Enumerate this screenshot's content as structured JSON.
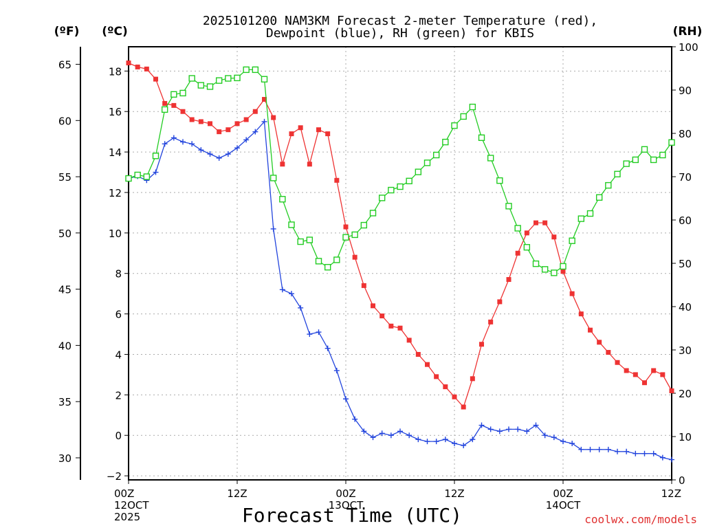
{
  "chart_data": {
    "type": "line",
    "title_line1": "2025101200 NAM3KM Forecast 2-meter Temperature (red),",
    "title_line2": "Dewpoint (blue), RH (green) for KBIS",
    "xlabel": "Forecast Time (UTC)",
    "left_unit_f": "(ºF)",
    "left_unit_c": "(ºC)",
    "right_unit": "(RH)",
    "credit": "coolwx.com/models",
    "x_range_hours": [
      0,
      60
    ],
    "x_ticks": [
      {
        "hour": 0,
        "lines": [
          "00Z",
          "12OCT",
          "2025"
        ]
      },
      {
        "hour": 12,
        "lines": [
          "12Z"
        ]
      },
      {
        "hour": 24,
        "lines": [
          "00Z",
          "13OCT"
        ]
      },
      {
        "hour": 36,
        "lines": [
          "12Z"
        ]
      },
      {
        "hour": 48,
        "lines": [
          "00Z",
          "14OCT"
        ]
      },
      {
        "hour": 60,
        "lines": [
          "12Z"
        ]
      }
    ],
    "y_celsius": {
      "range": [
        -2.2,
        19.2
      ],
      "ticks": [
        -2,
        0,
        2,
        4,
        6,
        8,
        10,
        12,
        14,
        16,
        18
      ]
    },
    "y_fahrenheit": {
      "ticks": [
        30,
        35,
        40,
        45,
        50,
        55,
        60,
        65
      ]
    },
    "y_rh": {
      "range": [
        0,
        100
      ],
      "ticks": [
        0,
        10,
        20,
        30,
        40,
        50,
        60,
        70,
        80,
        90,
        100
      ]
    },
    "series": [
      {
        "name": "Temperature",
        "unit": "C",
        "color": "#ee3333",
        "marker": "filled-square",
        "x": [
          0,
          1,
          2,
          3,
          4,
          5,
          6,
          7,
          8,
          9,
          10,
          11,
          12,
          13,
          14,
          15,
          16,
          17,
          18,
          19,
          20,
          21,
          22,
          23,
          24,
          25,
          26,
          27,
          28,
          29,
          30,
          31,
          32,
          33,
          34,
          35,
          36,
          37,
          38,
          39,
          40,
          41,
          42,
          43,
          44,
          45,
          46,
          47,
          48,
          49,
          50,
          51,
          52,
          53,
          54,
          55,
          56,
          57,
          58,
          59,
          60
        ],
        "values": [
          18.4,
          18.2,
          18.1,
          17.6,
          16.4,
          16.3,
          16.0,
          15.6,
          15.5,
          15.4,
          15.0,
          15.1,
          15.4,
          15.6,
          16.0,
          16.6,
          15.7,
          13.4,
          14.9,
          15.2,
          13.4,
          15.1,
          14.9,
          12.6,
          10.3,
          8.8,
          7.4,
          6.4,
          5.9,
          5.4,
          5.3,
          4.7,
          4.0,
          3.5,
          2.9,
          2.4,
          1.9,
          1.4,
          2.8,
          4.5,
          5.6,
          6.6,
          7.7,
          9.0,
          10.0,
          10.5,
          10.5,
          9.8,
          8.1,
          7.0,
          6.0,
          5.2,
          4.6,
          4.1,
          3.6,
          3.2,
          3.0,
          2.6,
          3.2,
          3.0,
          2.2
        ]
      },
      {
        "name": "Dewpoint",
        "unit": "C",
        "color": "#2244dd",
        "marker": "plus",
        "x": [
          0,
          1,
          2,
          3,
          4,
          5,
          6,
          7,
          8,
          9,
          10,
          11,
          12,
          13,
          14,
          15,
          16,
          17,
          18,
          19,
          20,
          21,
          22,
          23,
          24,
          25,
          26,
          27,
          28,
          29,
          30,
          31,
          32,
          33,
          34,
          35,
          36,
          37,
          38,
          39,
          40,
          41,
          42,
          43,
          44,
          45,
          46,
          47,
          48,
          49,
          50,
          51,
          52,
          53,
          54,
          55,
          56,
          57,
          58,
          59,
          60
        ],
        "values": [
          12.7,
          12.8,
          12.6,
          13.0,
          14.4,
          14.7,
          14.5,
          14.4,
          14.1,
          13.9,
          13.7,
          13.9,
          14.2,
          14.6,
          15.0,
          15.5,
          10.2,
          7.2,
          7.0,
          6.3,
          5.0,
          5.1,
          4.3,
          3.2,
          1.8,
          0.8,
          0.2,
          -0.1,
          0.1,
          0.0,
          0.2,
          0.0,
          -0.2,
          -0.3,
          -0.3,
          -0.2,
          -0.4,
          -0.5,
          -0.2,
          0.5,
          0.3,
          0.2,
          0.3,
          0.3,
          0.2,
          0.5,
          0.0,
          -0.1,
          -0.3,
          -0.4,
          -0.7,
          -0.7,
          -0.7,
          -0.7,
          -0.8,
          -0.8,
          -0.9,
          -0.9,
          -0.9,
          -1.1,
          -1.2
        ]
      },
      {
        "name": "RH",
        "unit": "%",
        "color": "#22cc22",
        "marker": "open-square",
        "x": [
          0,
          1,
          2,
          3,
          4,
          5,
          6,
          7,
          8,
          9,
          10,
          11,
          12,
          13,
          14,
          15,
          16,
          17,
          18,
          19,
          20,
          21,
          22,
          23,
          24,
          25,
          26,
          27,
          28,
          29,
          30,
          31,
          32,
          33,
          34,
          35,
          36,
          37,
          38,
          39,
          40,
          41,
          42,
          43,
          44,
          45,
          46,
          47,
          48,
          49,
          50,
          51,
          52,
          53,
          54,
          55,
          56,
          57,
          58,
          59,
          60
        ],
        "values": [
          69.6,
          70.4,
          70.0,
          74.8,
          85.5,
          89.0,
          89.3,
          92.7,
          91.1,
          90.8,
          92.2,
          92.7,
          92.8,
          94.7,
          94.7,
          92.5,
          69.7,
          64.8,
          58.9,
          55.0,
          55.4,
          50.5,
          49.1,
          50.8,
          56.0,
          56.6,
          58.8,
          61.6,
          65.1,
          66.9,
          67.7,
          69.0,
          71.1,
          73.2,
          75.0,
          78.0,
          81.8,
          83.9,
          86.1,
          79.0,
          74.3,
          69.1,
          63.2,
          58.1,
          53.7,
          49.9,
          48.6,
          47.8,
          49.3,
          55.2,
          60.3,
          61.5,
          65.2,
          68.0,
          70.6,
          73.0,
          73.9,
          76.3,
          73.9,
          75.0,
          77.9
        ]
      }
    ]
  }
}
